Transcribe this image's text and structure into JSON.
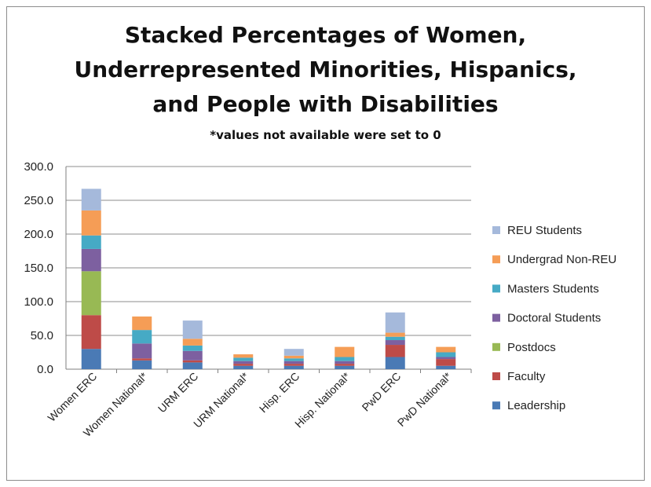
{
  "chart_data": {
    "type": "bar",
    "stacked": true,
    "title_lines": [
      "Stacked Percentages of Women,",
      "Underrepresented Minorities, Hispanics,",
      "and People with Disabilities"
    ],
    "subtitle": "*values not available were set to 0",
    "xlabel": "",
    "ylabel": "",
    "ylim": [
      0,
      300
    ],
    "yticks": [
      "0.0",
      "50.0",
      "100.0",
      "150.0",
      "200.0",
      "250.0",
      "300.0"
    ],
    "grid": true,
    "legend_position": "right",
    "categories": [
      "Women ERC",
      "Women National*",
      "URM ERC",
      "URM National*",
      "Hisp. ERC",
      "Hisp. National*",
      "PwD ERC",
      "PwD National*"
    ],
    "series": [
      {
        "name": "Leadership",
        "color": "#4a7ab5",
        "values": [
          30,
          13,
          10,
          5,
          5,
          5,
          18,
          5
        ]
      },
      {
        "name": "Faculty",
        "color": "#be4b48",
        "values": [
          50,
          3,
          3,
          3,
          3,
          3,
          18,
          10
        ]
      },
      {
        "name": "Postdocs",
        "color": "#98b954",
        "values": [
          65,
          0,
          0,
          0,
          0,
          0,
          0,
          0
        ]
      },
      {
        "name": "Doctoral Students",
        "color": "#7d60a0",
        "values": [
          33,
          22,
          14,
          4,
          4,
          4,
          7,
          3
        ]
      },
      {
        "name": "Masters Students",
        "color": "#46aac5",
        "values": [
          20,
          20,
          8,
          5,
          4,
          6,
          5,
          7
        ]
      },
      {
        "name": "Undergrad Non-REU",
        "color": "#f59d56",
        "values": [
          37,
          20,
          10,
          5,
          4,
          15,
          6,
          8
        ]
      },
      {
        "name": "REU Students",
        "color": "#a5b9db",
        "values": [
          32,
          0,
          27,
          0,
          10,
          0,
          30,
          0
        ]
      }
    ]
  }
}
